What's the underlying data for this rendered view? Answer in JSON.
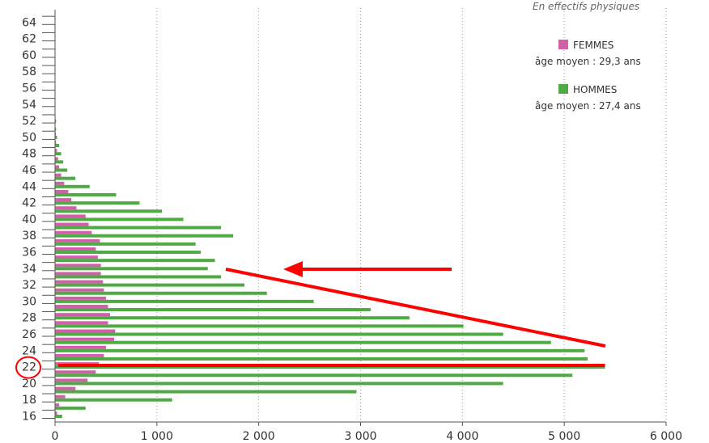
{
  "chart_data": {
    "type": "bar",
    "orientation": "horizontal",
    "subtitle": "En effectifs physiques",
    "ages": [
      16,
      17,
      18,
      19,
      20,
      21,
      22,
      23,
      24,
      25,
      26,
      27,
      28,
      29,
      30,
      31,
      32,
      33,
      34,
      35,
      36,
      37,
      38,
      39,
      40,
      41,
      42,
      43,
      44,
      45,
      46,
      47,
      48,
      49,
      50,
      51,
      52,
      53,
      54,
      55,
      56,
      57,
      58,
      59,
      60,
      61,
      62,
      63,
      64,
      65
    ],
    "y_tick_labels": [
      "16",
      "18",
      "20",
      "22",
      "24",
      "26",
      "28",
      "30",
      "32",
      "34",
      "36",
      "38",
      "40",
      "42",
      "44",
      "46",
      "48",
      "50",
      "52",
      "54",
      "56",
      "58",
      "60",
      "62",
      "64"
    ],
    "x_tick_labels": [
      "0",
      "1 000",
      "2 000",
      "3 000",
      "4 000",
      "5 000",
      "6 000"
    ],
    "x_ticks": [
      0,
      1000,
      2000,
      3000,
      4000,
      5000,
      6000
    ],
    "xlim": [
      0,
      6000
    ],
    "ylim": [
      16,
      65
    ],
    "grid": "vertical dotted",
    "legend_position": "top-right",
    "series": [
      {
        "name": "FEMMES",
        "note": "âge moyen :  29,3 ans",
        "color": "#d15fa9",
        "values": [
          20,
          40,
          100,
          200,
          320,
          400,
          430,
          480,
          500,
          580,
          590,
          520,
          540,
          520,
          500,
          480,
          470,
          450,
          450,
          420,
          400,
          440,
          360,
          330,
          300,
          210,
          160,
          130,
          90,
          60,
          40,
          30,
          20,
          10,
          8,
          0,
          0,
          0,
          0,
          0,
          0,
          0,
          0,
          0,
          0,
          0,
          0,
          0,
          0,
          0
        ]
      },
      {
        "name": "HOMMES",
        "note": "âge moyen :  27,4 ans",
        "color": "#4fa945",
        "values": [
          70,
          300,
          1150,
          2960,
          4400,
          5080,
          5400,
          5230,
          5200,
          4870,
          4400,
          4010,
          3480,
          3100,
          2540,
          2080,
          1860,
          1630,
          1500,
          1570,
          1430,
          1380,
          1750,
          1630,
          1260,
          1050,
          830,
          600,
          340,
          200,
          120,
          80,
          60,
          40,
          20,
          10,
          10,
          0,
          0,
          0,
          0,
          0,
          0,
          0,
          0,
          0,
          0,
          0,
          0,
          0
        ]
      }
    ],
    "annotations": {
      "circled_tick": "22",
      "color": "#ff0000"
    }
  }
}
